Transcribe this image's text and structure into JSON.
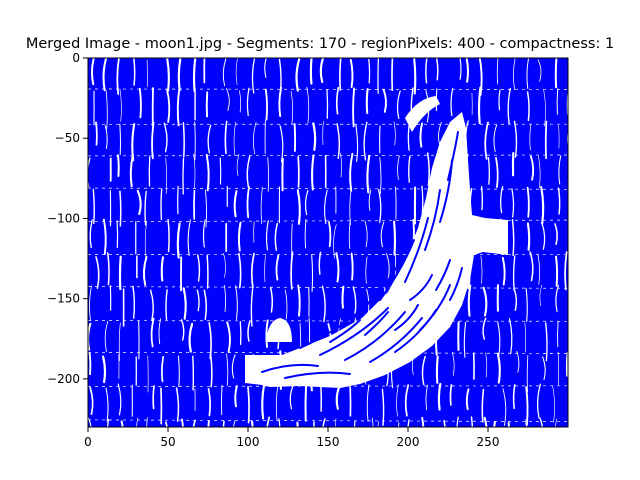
{
  "chart_data": {
    "type": "heatmap",
    "title": "Merged Image - moon1.jpg - Segments: 170 - regionPixels: 400 - compactness: 1",
    "xlabel": "",
    "ylabel": "",
    "xlim": [
      0,
      300
    ],
    "ylim": [
      -230,
      0
    ],
    "x_ticks": [
      0,
      50,
      100,
      150,
      200,
      250
    ],
    "y_ticks": [
      0,
      -50,
      -100,
      -150,
      -200
    ],
    "grid": false,
    "colors": {
      "contour": "#0000ff",
      "region": "#ffffff"
    }
  }
}
